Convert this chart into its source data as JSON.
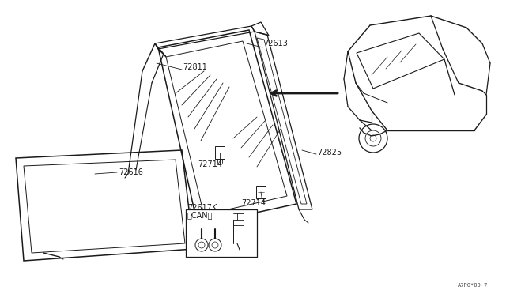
{
  "bg_color": "#ffffff",
  "line_color": "#1a1a1a",
  "label_color": "#1a1a1a",
  "fig_width": 6.4,
  "fig_height": 3.72,
  "dpi": 100,
  "watermark": "A7P0*00·7"
}
